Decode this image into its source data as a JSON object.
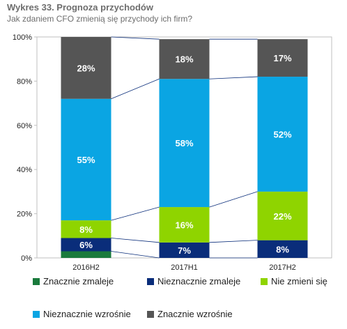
{
  "title": "Wykres 33. Prognoza przychodów",
  "subtitle": "Jak zdaniem CFO zmienią się przychody ich firm?",
  "chart_data": {
    "type": "bar",
    "stacked": true,
    "categories": [
      "2016H2",
      "2017H1",
      "2017H2"
    ],
    "ylim": [
      0,
      100
    ],
    "yticks": [
      "0%",
      "20%",
      "40%",
      "60%",
      "80%",
      "100%"
    ],
    "series": [
      {
        "name": "Znacznie zmaleje",
        "color": "#1a7a3c",
        "values": [
          3,
          0,
          0
        ],
        "labels": [
          "",
          "",
          ""
        ]
      },
      {
        "name": "Nieznacznie zmaleje",
        "color": "#0a2d7a",
        "values": [
          6,
          7,
          8
        ],
        "labels": [
          "6%",
          "7%",
          "8%"
        ]
      },
      {
        "name": "Nie zmieni się",
        "color": "#8fd400",
        "values": [
          8,
          16,
          22
        ],
        "labels": [
          "8%",
          "16%",
          "22%"
        ]
      },
      {
        "name": "Nieznacznie wzrośnie",
        "color": "#0aa5e3",
        "values": [
          55,
          58,
          52
        ],
        "labels": [
          "55%",
          "58%",
          "52%"
        ]
      },
      {
        "name": "Znacznie wzrośnie",
        "color": "#555555",
        "values": [
          28,
          18,
          17
        ],
        "labels": [
          "28%",
          "18%",
          "17%"
        ]
      }
    ],
    "legend_placement": "bottom"
  }
}
